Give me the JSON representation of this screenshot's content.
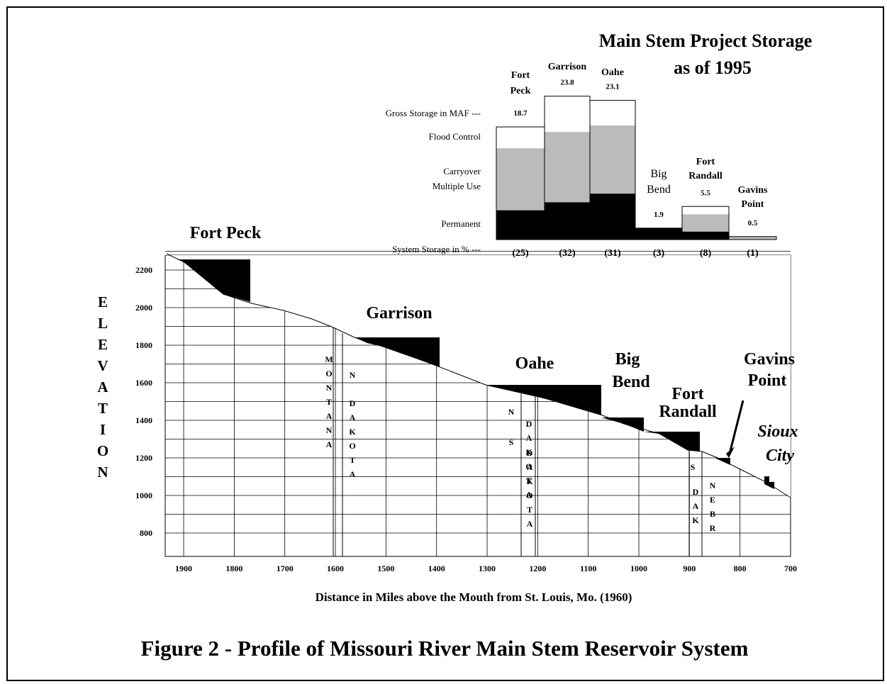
{
  "figure": {
    "title": "Figure 2 - Profile of Missouri River Main Stem Reservoir System"
  },
  "storage": {
    "title_lines": [
      "Main Stem Project Storage",
      "as of 1995"
    ],
    "row_labels": {
      "gross": "Gross Storage in MAF ---",
      "flood": "Flood Control",
      "carryover": [
        "Carryover",
        "Multiple Use"
      ],
      "permanent": "Permanent",
      "system": "System Storage in % ---"
    },
    "projects": [
      {
        "name_lines": [
          "Fort",
          "Peck"
        ],
        "gross": 18.7,
        "system_pct": "(25)"
      },
      {
        "name_lines": [
          "Garrison"
        ],
        "gross": 23.8,
        "system_pct": "(32)"
      },
      {
        "name_lines": [
          "Oahe"
        ],
        "gross": 23.1,
        "system_pct": "(31)"
      },
      {
        "name_lines": [
          "Big",
          "Bend"
        ],
        "gross": 1.9,
        "system_pct": "(3)"
      },
      {
        "name_lines": [
          "Fort",
          "Randall"
        ],
        "gross": 5.5,
        "system_pct": "(8)"
      },
      {
        "name_lines": [
          "Gavins",
          "Point"
        ],
        "gross": 0.5,
        "system_pct": "(1)"
      }
    ]
  },
  "profile": {
    "y_label": "ELEVATION",
    "x_label": "Distance in Miles above the Mouth from St. Louis, Mo. (1960)",
    "y_ticks": [
      2200,
      2000,
      1800,
      1600,
      1400,
      1200,
      1000,
      800
    ],
    "x_ticks": [
      1900,
      1800,
      1700,
      1600,
      1500,
      1400,
      1300,
      1200,
      1100,
      1000,
      900,
      800,
      700
    ],
    "reservoirs": [
      [
        "Fort Peck"
      ],
      [
        "Garrison"
      ],
      [
        "Oahe"
      ],
      [
        "Big",
        "Bend"
      ],
      [
        "Fort",
        "Randall"
      ],
      [
        "Gavins",
        "Point"
      ]
    ],
    "states": [
      "MONTANA",
      "N",
      "DAKOTA",
      "N",
      "DAKOTA",
      "S",
      "DAKOTA",
      "S",
      "DAK",
      "NEBR"
    ],
    "city": [
      "Sioux",
      "City"
    ]
  }
}
